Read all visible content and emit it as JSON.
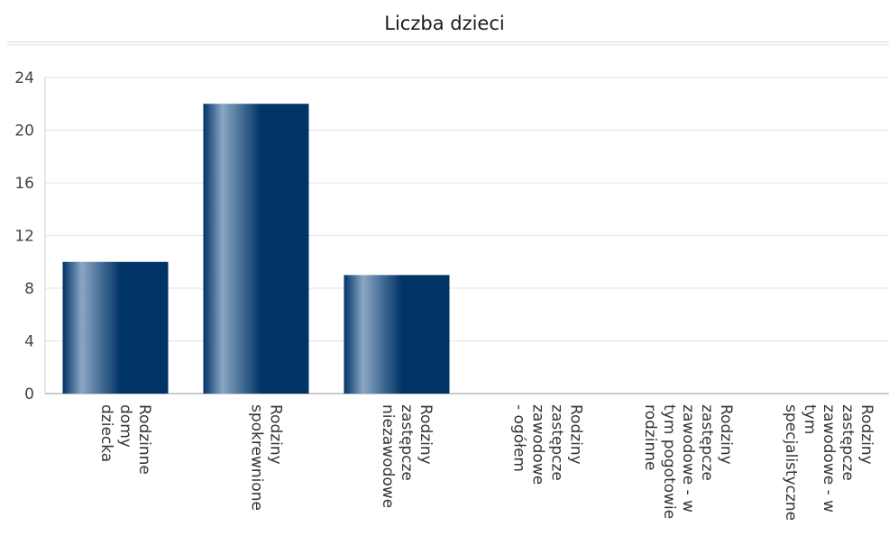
{
  "chart_data": {
    "type": "bar",
    "title": "Liczba dzieci",
    "xlabel": "",
    "ylabel": "",
    "ylim": [
      0,
      24
    ],
    "yticks": [
      0,
      4,
      8,
      12,
      16,
      20,
      24
    ],
    "grid": true,
    "categories": [
      "Rodzinne domy dziecka",
      "Rodziny spokrewnione",
      "Rodziny zastępcze niezawodowe",
      "Rodziny zastępcze zawodowe - ogółem",
      "Rodziny zastępcze zawodowe - w tym pogotowie rodzinne",
      "Rodziny zastępcze zawodowe - w tym specjalistyczne"
    ],
    "category_label_lines": [
      [
        "Rodzinne",
        "domy",
        "dziecka"
      ],
      [
        "Rodziny",
        "spokrewnione"
      ],
      [
        "Rodziny",
        "zastępcze",
        "niezawodowe"
      ],
      [
        "Rodziny",
        "zastępcze",
        "zawodowe",
        "- ogółem"
      ],
      [
        "Rodziny",
        "zastępcze",
        "zawodowe - w",
        "tym pogotowie",
        "rodzinne"
      ],
      [
        "Rodziny",
        "zastępcze",
        "zawodowe - w",
        "tym",
        "specjalistyczne"
      ]
    ],
    "values": [
      10,
      22,
      9,
      0,
      0,
      0
    ],
    "bar_color": "#003366",
    "bar_highlight": "#8aa6c4"
  }
}
